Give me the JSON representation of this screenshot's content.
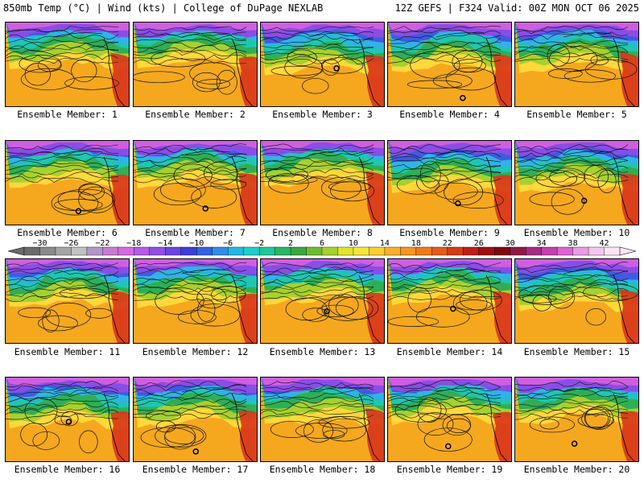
{
  "header": {
    "title": "850mb Temp (°C) | Wind (kts) | College of DuPage NEXLAB",
    "run_info": "12Z GEFS | F324 Valid: 00Z MON OCT 06 2025"
  },
  "members": [
    "Ensemble Member: 1",
    "Ensemble Member: 2",
    "Ensemble Member: 3",
    "Ensemble Member: 4",
    "Ensemble Member: 5",
    "Ensemble Member: 6",
    "Ensemble Member: 7",
    "Ensemble Member: 8",
    "Ensemble Member: 9",
    "Ensemble Member: 10",
    "Ensemble Member: 11",
    "Ensemble Member: 12",
    "Ensemble Member: 13",
    "Ensemble Member: 14",
    "Ensemble Member: 15",
    "Ensemble Member: 16",
    "Ensemble Member: 17",
    "Ensemble Member: 18",
    "Ensemble Member: 19",
    "Ensemble Member: 20"
  ],
  "colorbar": {
    "unit": "°C",
    "min": -32,
    "max": 44,
    "step": 2,
    "labels": [
      "−30",
      "−26",
      "−22",
      "−18",
      "−14",
      "−10",
      "−6",
      "−2",
      "2",
      "6",
      "10",
      "14",
      "18",
      "22",
      "26",
      "30",
      "34",
      "38",
      "42"
    ],
    "label_values": [
      -30,
      -26,
      -22,
      -18,
      -14,
      -10,
      -6,
      -2,
      2,
      6,
      10,
      14,
      18,
      22,
      26,
      30,
      34,
      38,
      42
    ],
    "colors": [
      "#6b6b6b",
      "#8a8a8a",
      "#a5a5a5",
      "#c2c2c2",
      "#b497c9",
      "#c77bd1",
      "#d66ae0",
      "#b65be6",
      "#8f4fe8",
      "#6a46e2",
      "#3c3fdb",
      "#2f63e0",
      "#2e8fe8",
      "#21b8e6",
      "#1fcfc9",
      "#1ec79a",
      "#27b765",
      "#3aa841",
      "#6cbd33",
      "#a6d12f",
      "#e0e42c",
      "#f6e63a",
      "#fbcf2f",
      "#f9b02a",
      "#f6951f",
      "#ef7a19",
      "#e55b18",
      "#d63b16",
      "#c01d16",
      "#a00f12",
      "#7e0a10",
      "#8e1a46",
      "#a72a82",
      "#c53eb2",
      "#dd64d4",
      "#e99be3",
      "#f2c8ef",
      "#fae6f8"
    ]
  },
  "map_colors": {
    "ocean_warm": "#f5a81e",
    "ocean_mid": "#f8c02a",
    "subtropic": "#ffd83a",
    "green": "#2fae55",
    "teal": "#1fc6b0",
    "cyan": "#2fb3e6",
    "blue": "#3f5be0",
    "purple": "#8a4de6",
    "magenta": "#cf5fe0",
    "land_hot": "#d9341a"
  }
}
